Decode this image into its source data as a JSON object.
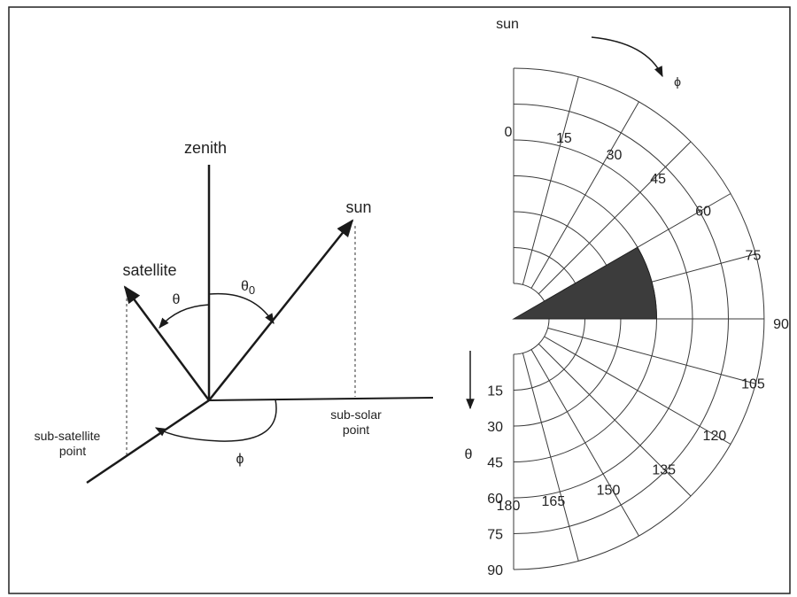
{
  "geometry_labels": {
    "zenith": "zenith",
    "sun": "sun",
    "satellite": "satellite",
    "theta": "θ",
    "theta0": "θ",
    "theta0_sub": "0",
    "phi": "ϕ",
    "sub_solar_line1": "sub-solar",
    "sub_solar_line2": "point",
    "sub_satellite_line1": "sub-satellite",
    "sub_satellite_line2": "point"
  },
  "polar_plot": {
    "sun_label": "sun",
    "phi_symbol": "ϕ",
    "theta_symbol": "θ",
    "phi_ticks": [
      "0",
      "15",
      "30",
      "45",
      "60",
      "75",
      "90",
      "105",
      "120",
      "135",
      "150",
      "165",
      "180"
    ],
    "theta_ticks": [
      "15",
      "30",
      "45",
      "60",
      "75",
      "90"
    ],
    "theta_ring_values": [
      15,
      30,
      45,
      60,
      75,
      90
    ],
    "phi_spoke_step_deg": 15,
    "shaded_sector": {
      "phi_from": 60,
      "phi_to": 90,
      "theta_from": 15,
      "theta_to": 45
    },
    "shade_color": "#3c3c3c"
  }
}
